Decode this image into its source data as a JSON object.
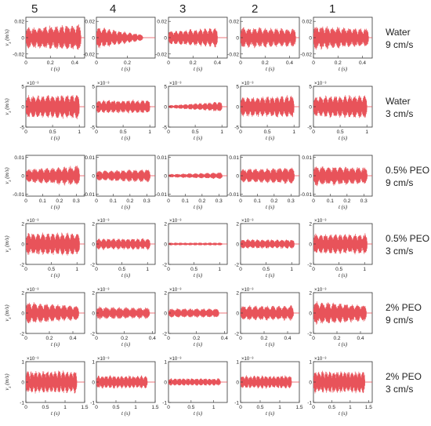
{
  "column_headers": [
    "5",
    "4",
    "3",
    "2",
    "1"
  ],
  "row_labels": [
    {
      "line1": "Water",
      "line2": "9 cm/s"
    },
    {
      "line1": "Water",
      "line2": "3 cm/s"
    },
    {
      "line1": "0.5% PEO",
      "line2": "9 cm/s"
    },
    {
      "line1": "0.5% PEO",
      "line2": "3 cm/s"
    },
    {
      "line1": "2% PEO",
      "line2": "9 cm/s"
    },
    {
      "line1": "2% PEO",
      "line2": "3 cm/s"
    }
  ],
  "axis_labels": {
    "x": "t (s)",
    "y": "v_z (m/s)"
  },
  "colors": {
    "signal": "#e8535a",
    "axes": "#333333",
    "text": "#222222"
  },
  "chart_data": [
    {
      "type": "line",
      "row": 0,
      "ylabel": "v_z (m/s)",
      "xlabel": "t (s)",
      "exponent": "",
      "ylim": [
        -0.025,
        0.025
      ],
      "yticks": [
        "0.02",
        "0",
        "-0.02"
      ],
      "yticks_v": [
        0.02,
        0,
        -0.02
      ],
      "panels": [
        {
          "column": "5",
          "xlim": [
            0,
            0.48
          ],
          "xticks": [
            "0",
            "0.2",
            "0.4"
          ],
          "xticks_v": [
            0,
            0.2,
            0.4
          ],
          "duration": 0.45,
          "cycles": 10,
          "amp_start": 0.014,
          "amp_end": 0.018,
          "offset": 0.0
        },
        {
          "column": "4",
          "xlim": [
            0,
            0.38
          ],
          "xticks": [
            "0",
            "0.2"
          ],
          "xticks_v": [
            0,
            0.2
          ],
          "duration": 0.3,
          "cycles": 9,
          "amp_start": 0.015,
          "amp_end": 0.004,
          "offset": 0.0
        },
        {
          "column": "3",
          "xlim": [
            0,
            0.48
          ],
          "xticks": [
            "0",
            "0.2",
            "0.4"
          ],
          "xticks_v": [
            0,
            0.2,
            0.4
          ],
          "duration": 0.4,
          "cycles": 10,
          "amp_start": 0.009,
          "amp_end": 0.013,
          "offset": 0.0
        },
        {
          "column": "2",
          "xlim": [
            0,
            0.48
          ],
          "xticks": [
            "0",
            "0.2",
            "0.4"
          ],
          "xticks_v": [
            0,
            0.2,
            0.4
          ],
          "duration": 0.45,
          "cycles": 10,
          "amp_start": 0.014,
          "amp_end": 0.012,
          "offset": 0.003
        },
        {
          "column": "1",
          "xlim": [
            0,
            0.48
          ],
          "xticks": [
            "0",
            "0.2",
            "0.4"
          ],
          "xticks_v": [
            0,
            0.2,
            0.4
          ],
          "duration": 0.45,
          "cycles": 10,
          "amp_start": 0.016,
          "amp_end": 0.012,
          "offset": 0.002
        }
      ]
    },
    {
      "type": "line",
      "row": 1,
      "ylabel": "v_z (m/s)",
      "xlabel": "t (s)",
      "exponent": "×10⁻³",
      "ylim": [
        -5,
        5
      ],
      "yticks": [
        "5",
        "0",
        "-5"
      ],
      "yticks_v": [
        5,
        0,
        -5
      ],
      "panels": [
        {
          "column": "5",
          "xlim": [
            0,
            1.1
          ],
          "xticks": [
            "0",
            "0.5",
            "1"
          ],
          "xticks_v": [
            0,
            0.5,
            1
          ],
          "duration": 1.0,
          "cycles": 11,
          "amp_start": 3.0,
          "amp_end": 3.4,
          "offset": 0.2
        },
        {
          "column": "4",
          "xlim": [
            0,
            1.1
          ],
          "xticks": [
            "0",
            "0.5",
            "1"
          ],
          "xticks_v": [
            0,
            0.5,
            1
          ],
          "duration": 1.0,
          "cycles": 11,
          "amp_start": 1.8,
          "amp_end": 1.8,
          "offset": 0.2
        },
        {
          "column": "3",
          "xlim": [
            0,
            1.1
          ],
          "xticks": [
            "0",
            "0.5",
            "1"
          ],
          "xticks_v": [
            0,
            0.5,
            1
          ],
          "duration": 1.0,
          "cycles": 11,
          "amp_start": 0.4,
          "amp_end": 1.4,
          "offset": 0.2
        },
        {
          "column": "2",
          "xlim": [
            0,
            1.1
          ],
          "xticks": [
            "0",
            "0.5",
            "1"
          ],
          "xticks_v": [
            0,
            0.5,
            1
          ],
          "duration": 1.0,
          "cycles": 11,
          "amp_start": 2.6,
          "amp_end": 3.0,
          "offset": 0.3
        },
        {
          "column": "1",
          "xlim": [
            0,
            1.1
          ],
          "xticks": [
            "0",
            "0.5",
            "1"
          ],
          "xticks_v": [
            0,
            0.5,
            1
          ],
          "duration": 1.0,
          "cycles": 11,
          "amp_start": 2.8,
          "amp_end": 3.2,
          "offset": 0.3
        }
      ]
    },
    {
      "type": "line",
      "row": 2,
      "ylabel": "v_z (m/s)",
      "xlabel": "t (s)",
      "exponent": "",
      "ylim": [
        -0.011,
        0.011
      ],
      "yticks": [
        "0.01",
        "0",
        "-0.01"
      ],
      "yticks_v": [
        0.01,
        0,
        -0.01
      ],
      "panels": [
        {
          "column": "5",
          "xlim": [
            0,
            0.35
          ],
          "xticks": [
            "0",
            "0.1",
            "0.2",
            "0.3"
          ],
          "xticks_v": [
            0,
            0.1,
            0.2,
            0.3
          ],
          "duration": 0.32,
          "cycles": 9,
          "amp_start": 0.004,
          "amp_end": 0.006,
          "offset": 0.0
        },
        {
          "column": "4",
          "xlim": [
            0,
            0.35
          ],
          "xticks": [
            "0",
            "0.1",
            "0.2",
            "0.3"
          ],
          "xticks_v": [
            0,
            0.1,
            0.2,
            0.3
          ],
          "duration": 0.32,
          "cycles": 9,
          "amp_start": 0.003,
          "amp_end": 0.004,
          "offset": 0.0
        },
        {
          "column": "3",
          "xlim": [
            0,
            0.35
          ],
          "xticks": [
            "0",
            "0.1",
            "0.2",
            "0.3"
          ],
          "xticks_v": [
            0,
            0.1,
            0.2,
            0.3
          ],
          "duration": 0.32,
          "cycles": 9,
          "amp_start": 0.001,
          "amp_end": 0.002,
          "offset": 0.0
        },
        {
          "column": "2",
          "xlim": [
            0,
            0.35
          ],
          "xticks": [
            "0",
            "0.1",
            "0.2",
            "0.3"
          ],
          "xticks_v": [
            0,
            0.1,
            0.2,
            0.3
          ],
          "duration": 0.32,
          "cycles": 9,
          "amp_start": 0.004,
          "amp_end": 0.005,
          "offset": 0.0
        },
        {
          "column": "1",
          "xlim": [
            0,
            0.35
          ],
          "xticks": [
            "0",
            "0.1",
            "0.2",
            "0.3"
          ],
          "xticks_v": [
            0,
            0.1,
            0.2,
            0.3
          ],
          "duration": 0.32,
          "cycles": 9,
          "amp_start": 0.006,
          "amp_end": 0.005,
          "offset": 0.001
        }
      ]
    },
    {
      "type": "line",
      "row": 3,
      "ylabel": "v_z (m/s)",
      "xlabel": "t (s)",
      "exponent": "×10⁻³",
      "ylim": [
        -2,
        2
      ],
      "yticks": [
        "2",
        "0",
        "-2"
      ],
      "yticks_v": [
        2,
        0,
        -2
      ],
      "panels": [
        {
          "column": "5",
          "xlim": [
            0,
            1.15
          ],
          "xticks": [
            "0",
            "0.5",
            "1"
          ],
          "xticks_v": [
            0,
            0.5,
            1
          ],
          "duration": 1.05,
          "cycles": 11,
          "amp_start": 1.2,
          "amp_end": 1.2,
          "offset": 0.0
        },
        {
          "column": "4",
          "xlim": [
            0,
            1.15
          ],
          "xticks": [
            "0",
            "0.5",
            "1"
          ],
          "xticks_v": [
            0,
            0.5,
            1
          ],
          "duration": 1.05,
          "cycles": 11,
          "amp_start": 0.6,
          "amp_end": 0.6,
          "offset": 0.0
        },
        {
          "column": "3",
          "xlim": [
            0,
            1.15
          ],
          "xticks": [
            "0",
            "0.5",
            "1"
          ],
          "xticks_v": [
            0,
            0.5,
            1
          ],
          "duration": 1.05,
          "cycles": 11,
          "amp_start": 0.15,
          "amp_end": 0.15,
          "offset": 0.0
        },
        {
          "column": "2",
          "xlim": [
            0,
            1.15
          ],
          "xticks": [
            "0",
            "0.5",
            "1"
          ],
          "xticks_v": [
            0,
            0.5,
            1
          ],
          "duration": 1.05,
          "cycles": 11,
          "amp_start": 0.5,
          "amp_end": 0.5,
          "offset": 0.0
        },
        {
          "column": "1",
          "xlim": [
            0,
            1.15
          ],
          "xticks": [
            "0",
            "0.5",
            "1"
          ],
          "xticks_v": [
            0,
            0.5,
            1
          ],
          "duration": 1.05,
          "cycles": 11,
          "amp_start": 1.1,
          "amp_end": 1.1,
          "offset": 0.2
        }
      ]
    },
    {
      "type": "line",
      "row": 4,
      "ylabel": "v_z (m/s)",
      "xlabel": "t (s)",
      "exponent": "×10⁻³",
      "ylim": [
        -2,
        2
      ],
      "yticks": [
        "2",
        "0",
        "-2"
      ],
      "yticks_v": [
        2,
        0,
        -2
      ],
      "panels": [
        {
          "column": "5",
          "xlim": [
            0,
            0.5
          ],
          "xticks": [
            "0",
            "0.2",
            "0.4"
          ],
          "xticks_v": [
            0,
            0.2,
            0.4
          ],
          "duration": 0.45,
          "cycles": 9,
          "amp_start": 1.2,
          "amp_end": 0.8,
          "offset": 0.3
        },
        {
          "column": "4",
          "xlim": [
            0,
            0.42
          ],
          "xticks": [
            "0",
            "0.2",
            "0.4"
          ],
          "xticks_v": [
            0,
            0.2,
            0.4
          ],
          "duration": 0.38,
          "cycles": 8,
          "amp_start": 0.7,
          "amp_end": 0.6,
          "offset": 0.0
        },
        {
          "column": "3",
          "xlim": [
            0,
            0.42
          ],
          "xticks": [
            "0",
            "0.2",
            "0.4"
          ],
          "xticks_v": [
            0,
            0.2,
            0.4
          ],
          "duration": 0.36,
          "cycles": 8,
          "amp_start": 0.5,
          "amp_end": 0.5,
          "offset": 0.0
        },
        {
          "column": "2",
          "xlim": [
            0,
            0.5
          ],
          "xticks": [
            "0",
            "0.2",
            "0.4"
          ],
          "xticks_v": [
            0,
            0.2,
            0.4
          ],
          "duration": 0.45,
          "cycles": 9,
          "amp_start": 0.8,
          "amp_end": 0.8,
          "offset": 0.0
        },
        {
          "column": "1",
          "xlim": [
            0,
            0.5
          ],
          "xticks": [
            "0",
            "0.2",
            "0.4"
          ],
          "xticks_v": [
            0,
            0.2,
            0.4
          ],
          "duration": 0.45,
          "cycles": 9,
          "amp_start": 1.3,
          "amp_end": 0.9,
          "offset": 0.3
        }
      ]
    },
    {
      "type": "line",
      "row": 5,
      "ylabel": "v_z (m/s)",
      "xlabel": "t (s)",
      "exponent": "×10⁻³",
      "ylim": [
        -1,
        1
      ],
      "yticks": [
        "1",
        "0",
        "-1"
      ],
      "yticks_v": [
        1,
        0,
        -1
      ],
      "panels": [
        {
          "column": "5",
          "xlim": [
            0,
            1.5
          ],
          "xticks": [
            "0",
            "0.5",
            "1",
            "1.5"
          ],
          "xticks_v": [
            0,
            0.5,
            1,
            1.5
          ],
          "duration": 1.3,
          "cycles": 13,
          "amp_start": 0.6,
          "amp_end": 0.6,
          "offset": 0.0
        },
        {
          "column": "4",
          "xlim": [
            0,
            1.5
          ],
          "xticks": [
            "0",
            "0.5",
            "1",
            "1.5"
          ],
          "xticks_v": [
            0,
            0.5,
            1,
            1.5
          ],
          "duration": 1.3,
          "cycles": 13,
          "amp_start": 0.35,
          "amp_end": 0.35,
          "offset": 0.0
        },
        {
          "column": "3",
          "xlim": [
            0,
            1.3
          ],
          "xticks": [
            "0",
            "0.5",
            "1"
          ],
          "xticks_v": [
            0,
            0.5,
            1
          ],
          "duration": 1.15,
          "cycles": 12,
          "amp_start": 0.2,
          "amp_end": 0.2,
          "offset": 0.0
        },
        {
          "column": "2",
          "xlim": [
            0,
            1.5
          ],
          "xticks": [
            "0",
            "0.5",
            "1",
            "1.5"
          ],
          "xticks_v": [
            0,
            0.5,
            1,
            1.5
          ],
          "duration": 1.3,
          "cycles": 13,
          "amp_start": 0.35,
          "amp_end": 0.35,
          "offset": 0.0
        },
        {
          "column": "1",
          "xlim": [
            0,
            1.6
          ],
          "xticks": [
            "0",
            "0.5",
            "1",
            "1.5"
          ],
          "xticks_v": [
            0,
            0.5,
            1,
            1.5
          ],
          "duration": 1.4,
          "cycles": 14,
          "amp_start": 0.6,
          "amp_end": 0.6,
          "offset": 0.0
        }
      ]
    }
  ]
}
